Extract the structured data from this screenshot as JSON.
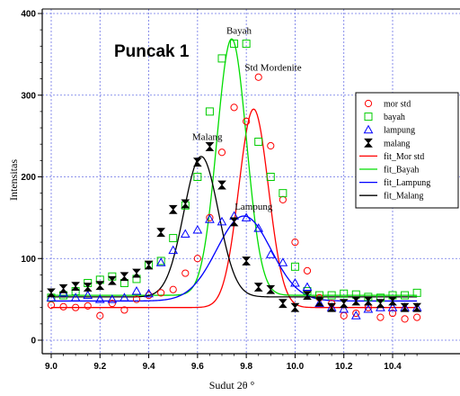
{
  "chart_data": {
    "type": "scatter",
    "title": "Puncak 1",
    "xlabel": "Sudut 2θ °",
    "ylabel": "Intensitas",
    "xlim": [
      9.0,
      10.5
    ],
    "ylim": [
      -10,
      405
    ],
    "x_ticks": [
      "9.0",
      "9.2",
      "9.4",
      "9.6",
      "9.8",
      "10.0",
      "10.2",
      "10.4"
    ],
    "y_ticks": [
      "0",
      "100",
      "200",
      "300",
      "400"
    ],
    "grid": true,
    "legend_position": "right",
    "annotations": [
      {
        "text": "Bayah",
        "x": 9.77,
        "y": 375
      },
      {
        "text": "Std Mordenite",
        "x": 9.91,
        "y": 330
      },
      {
        "text": "Malang",
        "x": 9.64,
        "y": 245
      },
      {
        "text": "Lampung",
        "x": 9.83,
        "y": 160
      }
    ],
    "series": [
      {
        "name": "mor std",
        "kind": "points",
        "marker": "circle",
        "color": "#ff0000",
        "x": [
          9.0,
          9.05,
          9.1,
          9.15,
          9.2,
          9.25,
          9.3,
          9.35,
          9.4,
          9.45,
          9.5,
          9.55,
          9.6,
          9.65,
          9.7,
          9.75,
          9.8,
          9.85,
          9.9,
          9.95,
          10.0,
          10.05,
          10.1,
          10.15,
          10.2,
          10.25,
          10.3,
          10.35,
          10.4,
          10.45,
          10.5
        ],
        "y": [
          43,
          41,
          40,
          42,
          30,
          45,
          37,
          50,
          55,
          58,
          62,
          82,
          100,
          150,
          230,
          285,
          268,
          322,
          238,
          172,
          120,
          85,
          52,
          45,
          30,
          33,
          40,
          28,
          33,
          26,
          28
        ]
      },
      {
        "name": "bayah",
        "kind": "points",
        "marker": "square",
        "color": "#00cc00",
        "x": [
          9.0,
          9.05,
          9.1,
          9.15,
          9.2,
          9.25,
          9.3,
          9.35,
          9.4,
          9.45,
          9.5,
          9.55,
          9.6,
          9.65,
          9.7,
          9.75,
          9.8,
          9.85,
          9.9,
          9.95,
          10.0,
          10.05,
          10.1,
          10.15,
          10.2,
          10.25,
          10.3,
          10.35,
          10.4,
          10.45,
          10.5
        ],
        "y": [
          52,
          55,
          60,
          70,
          74,
          78,
          70,
          75,
          92,
          97,
          125,
          165,
          200,
          280,
          345,
          363,
          363,
          243,
          200,
          180,
          90,
          60,
          55,
          55,
          57,
          56,
          53,
          52,
          55,
          55,
          58
        ]
      },
      {
        "name": "lampung",
        "kind": "points",
        "marker": "triangle",
        "color": "#0000ff",
        "x": [
          9.0,
          9.05,
          9.1,
          9.15,
          9.2,
          9.25,
          9.3,
          9.35,
          9.4,
          9.45,
          9.5,
          9.55,
          9.6,
          9.65,
          9.7,
          9.75,
          9.8,
          9.85,
          9.9,
          9.95,
          10.0,
          10.05,
          10.1,
          10.15,
          10.2,
          10.25,
          10.3,
          10.35,
          10.4,
          10.45,
          10.5
        ],
        "y": [
          52,
          58,
          52,
          55,
          50,
          50,
          52,
          60,
          57,
          95,
          110,
          130,
          135,
          148,
          145,
          152,
          150,
          137,
          105,
          95,
          70,
          65,
          45,
          40,
          38,
          30,
          38,
          40,
          40,
          40,
          40
        ]
      },
      {
        "name": "malang",
        "kind": "points",
        "marker": "bowtie",
        "color": "#000000",
        "x": [
          9.0,
          9.05,
          9.1,
          9.15,
          9.2,
          9.25,
          9.3,
          9.35,
          9.4,
          9.45,
          9.5,
          9.55,
          9.6,
          9.65,
          9.7,
          9.75,
          9.8,
          9.85,
          9.9,
          9.95,
          10.0,
          10.05,
          10.1,
          10.15,
          10.2,
          10.25,
          10.3,
          10.35,
          10.4,
          10.45,
          10.5
        ],
        "y": [
          58,
          63,
          66,
          65,
          67,
          73,
          78,
          82,
          92,
          132,
          160,
          167,
          218,
          237,
          190,
          145,
          97,
          65,
          62,
          45,
          40,
          55,
          47,
          40,
          45,
          48,
          48,
          45,
          48,
          40,
          40
        ]
      },
      {
        "name": "fit_Mor std",
        "kind": "fit",
        "color": "#ff0000",
        "base": 40,
        "amp": 243,
        "center": 9.83,
        "width": 0.09
      },
      {
        "name": "fit_Bayah",
        "kind": "fit",
        "color": "#00dd00",
        "base": 55,
        "amp": 314,
        "center": 9.74,
        "width": 0.09
      },
      {
        "name": "fit_Lampung",
        "kind": "fit",
        "color": "#0000ff",
        "base": 48,
        "amp": 104,
        "center": 9.79,
        "width": 0.165
      },
      {
        "name": "fit_Malang",
        "kind": "fit",
        "color": "#000000",
        "base": 53,
        "amp": 172,
        "center": 9.615,
        "width": 0.105
      }
    ]
  },
  "colors": {
    "grid": "#6b73e6",
    "axis": "#000000"
  }
}
